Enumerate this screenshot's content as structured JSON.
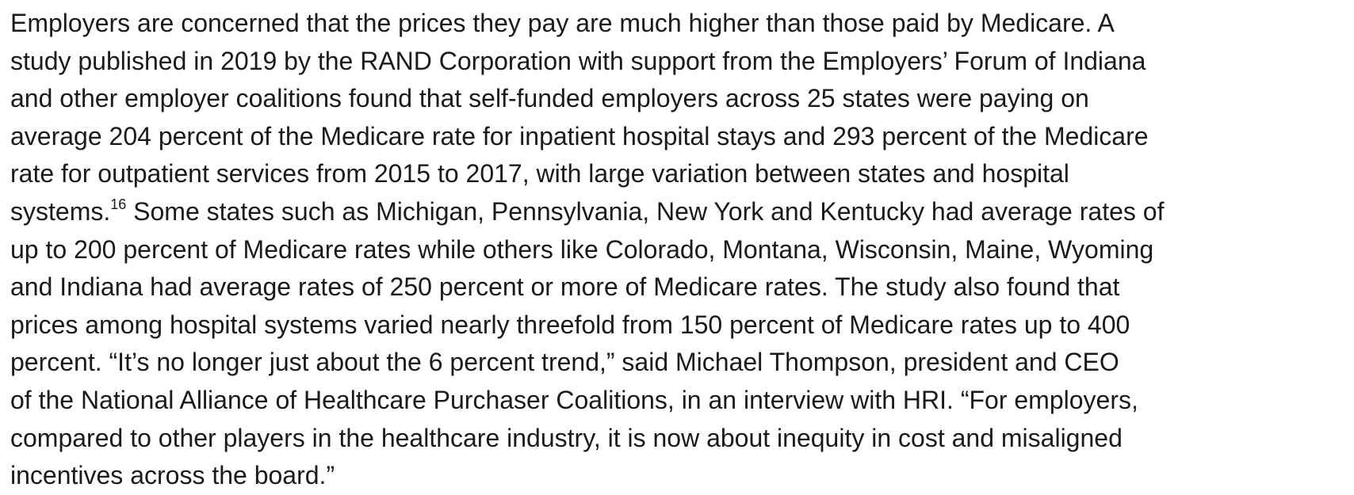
{
  "paragraph": {
    "lines": [
      "Employers are concerned that the prices they pay are much higher than those paid by Medicare. A",
      "study published in 2019 by the RAND Corporation with support from the Employers’ Forum of Indiana",
      "and other employer coalitions found that self-funded employers across 25 states were paying on",
      "average 204 percent of the Medicare rate for inpatient hospital stays and 293 percent of the Medicare",
      "rate for outpatient services from 2015 to 2017, with large variation between states and hospital",
      {
        "before": "systems.",
        "sup": "16",
        "after": " Some states such as Michigan, Pennsylvania, New York and Kentucky had average rates of"
      },
      "up to 200 percent of Medicare rates while others like Colorado, Montana, Wisconsin, Maine, Wyoming",
      "and Indiana had average rates of 250 percent or more of Medicare rates. The study also found that",
      "prices among hospital systems varied nearly threefold from 150 percent of Medicare rates up to 400",
      "percent. “It’s no longer just about the 6 percent trend,” said Michael Thompson, president and CEO",
      "of the National Alliance of Healthcare Purchaser Coalitions, in an interview with HRI. “For employers,",
      "compared to other players in the healthcare industry, it is now about inequity in cost and misaligned",
      "incentives across the board.”"
    ]
  }
}
